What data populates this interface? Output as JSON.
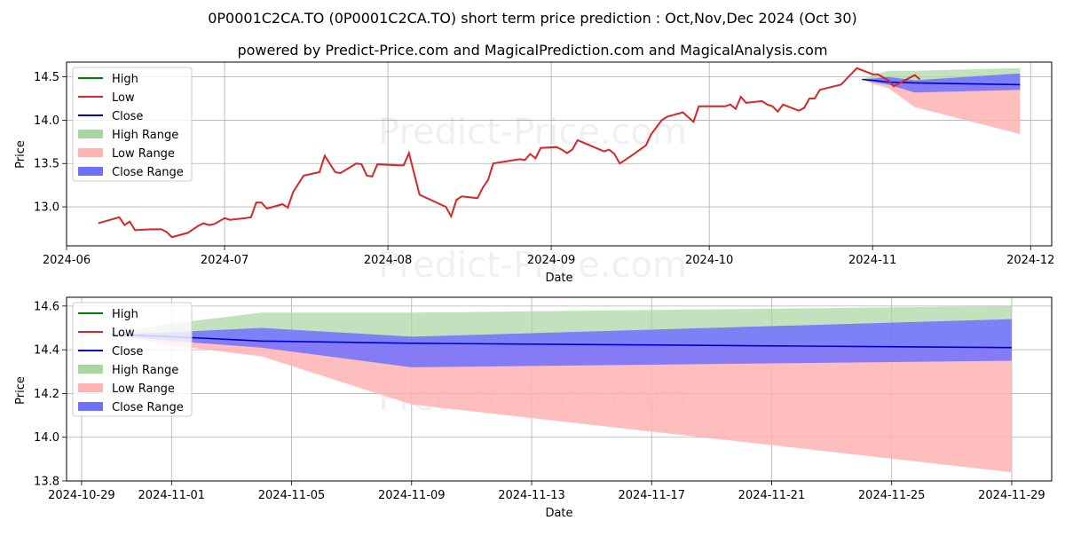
{
  "title": "0P0001C2CA.TO (0P0001C2CA.TO) short term price prediction : Oct,Nov,Dec 2024 (Oct 30)",
  "subtitle": "powered by Predict-Price.com and MagicalPrediction.com and MagicalAnalysis.com",
  "watermark": "Predict-Price.com",
  "colors": {
    "high": "#008000",
    "low": "#d62728",
    "close": "#0000cc",
    "high_range": "#a8d5a2",
    "low_range": "#ffb3b3",
    "close_range": "#7070ff"
  },
  "legend": [
    "High",
    "Low",
    "Close",
    "High Range",
    "Low Range",
    "Close Range"
  ],
  "chart_data": [
    {
      "type": "line",
      "xlabel": "Date",
      "ylabel": "Price",
      "legend_position": "top-left",
      "grid": true,
      "xlim": [
        "2024-06-01",
        "2024-12-05"
      ],
      "ylim": [
        12.55,
        14.67
      ],
      "x_ticks": [
        "2024-06",
        "2024-07",
        "2024-08",
        "2024-09",
        "2024-10",
        "2024-11",
        "2024-12"
      ],
      "x_tick_dates": [
        "2024-06-01",
        "2024-07-01",
        "2024-08-01",
        "2024-09-01",
        "2024-10-01",
        "2024-11-01",
        "2024-12-01"
      ],
      "y_ticks": [
        "13.0",
        "13.5",
        "14.0",
        "14.5"
      ],
      "history": {
        "name": "Low",
        "points": [
          [
            "2024-06-07",
            12.81
          ],
          [
            "2024-06-11",
            12.88
          ],
          [
            "2024-06-12",
            12.79
          ],
          [
            "2024-06-13",
            12.83
          ],
          [
            "2024-06-14",
            12.73
          ],
          [
            "2024-06-17",
            12.74
          ],
          [
            "2024-06-19",
            12.74
          ],
          [
            "2024-06-20",
            12.71
          ],
          [
            "2024-06-21",
            12.65
          ],
          [
            "2024-06-24",
            12.7
          ],
          [
            "2024-06-26",
            12.78
          ],
          [
            "2024-06-27",
            12.81
          ],
          [
            "2024-06-28",
            12.79
          ],
          [
            "2024-06-29",
            12.8
          ],
          [
            "2024-07-01",
            12.87
          ],
          [
            "2024-07-02",
            12.85
          ],
          [
            "2024-07-05",
            12.87
          ],
          [
            "2024-07-06",
            12.88
          ],
          [
            "2024-07-07",
            13.05
          ],
          [
            "2024-07-08",
            13.05
          ],
          [
            "2024-07-09",
            12.98
          ],
          [
            "2024-07-12",
            13.03
          ],
          [
            "2024-07-13",
            12.99
          ],
          [
            "2024-07-14",
            13.17
          ],
          [
            "2024-07-16",
            13.36
          ],
          [
            "2024-07-19",
            13.4
          ],
          [
            "2024-07-20",
            13.59
          ],
          [
            "2024-07-22",
            13.4
          ],
          [
            "2024-07-23",
            13.39
          ],
          [
            "2024-07-26",
            13.5
          ],
          [
            "2024-07-27",
            13.49
          ],
          [
            "2024-07-28",
            13.36
          ],
          [
            "2024-07-29",
            13.35
          ],
          [
            "2024-07-30",
            13.49
          ],
          [
            "2024-08-03",
            13.48
          ],
          [
            "2024-08-04",
            13.48
          ],
          [
            "2024-08-05",
            13.62
          ],
          [
            "2024-08-07",
            13.14
          ],
          [
            "2024-08-12",
            13.0
          ],
          [
            "2024-08-13",
            12.89
          ],
          [
            "2024-08-14",
            13.08
          ],
          [
            "2024-08-15",
            13.12
          ],
          [
            "2024-08-18",
            13.1
          ],
          [
            "2024-08-19",
            13.22
          ],
          [
            "2024-08-20",
            13.31
          ],
          [
            "2024-08-21",
            13.5
          ],
          [
            "2024-08-26",
            13.55
          ],
          [
            "2024-08-27",
            13.54
          ],
          [
            "2024-08-28",
            13.61
          ],
          [
            "2024-08-29",
            13.56
          ],
          [
            "2024-08-30",
            13.68
          ],
          [
            "2024-09-02",
            13.69
          ],
          [
            "2024-09-03",
            13.66
          ],
          [
            "2024-09-04",
            13.62
          ],
          [
            "2024-09-05",
            13.66
          ],
          [
            "2024-09-06",
            13.77
          ],
          [
            "2024-09-11",
            13.64
          ],
          [
            "2024-09-12",
            13.66
          ],
          [
            "2024-09-13",
            13.61
          ],
          [
            "2024-09-14",
            13.5
          ],
          [
            "2024-09-16",
            13.58
          ],
          [
            "2024-09-19",
            13.71
          ],
          [
            "2024-09-20",
            13.84
          ],
          [
            "2024-09-22",
            14.0
          ],
          [
            "2024-09-23",
            14.04
          ],
          [
            "2024-09-26",
            14.09
          ],
          [
            "2024-09-28",
            13.98
          ],
          [
            "2024-09-29",
            14.16
          ],
          [
            "2024-10-04",
            14.16
          ],
          [
            "2024-10-05",
            14.18
          ],
          [
            "2024-10-06",
            14.13
          ],
          [
            "2024-10-07",
            14.27
          ],
          [
            "2024-10-08",
            14.2
          ],
          [
            "2024-10-11",
            14.22
          ],
          [
            "2024-10-12",
            14.18
          ],
          [
            "2024-10-13",
            14.16
          ],
          [
            "2024-10-14",
            14.1
          ],
          [
            "2024-10-15",
            14.18
          ],
          [
            "2024-10-18",
            14.11
          ],
          [
            "2024-10-19",
            14.14
          ],
          [
            "2024-10-20",
            14.25
          ],
          [
            "2024-10-21",
            14.25
          ],
          [
            "2024-10-22",
            14.35
          ],
          [
            "2024-10-26",
            14.41
          ],
          [
            "2024-10-29",
            14.6
          ],
          [
            "2024-11-01",
            14.53
          ],
          [
            "2024-11-02",
            14.53
          ],
          [
            "2024-11-04",
            14.46
          ],
          [
            "2024-11-05",
            14.39
          ],
          [
            "2024-11-09",
            14.52
          ],
          [
            "2024-11-10",
            14.47
          ]
        ]
      }
    },
    {
      "type": "area",
      "xlabel": "Date",
      "ylabel": "Price",
      "legend_position": "top-left",
      "grid": true,
      "xlim": [
        "2024-10-28 12:00",
        "2024-11-30 08:00"
      ],
      "ylim": [
        13.8,
        14.64
      ],
      "x_ticks": [
        "2024-10-29",
        "2024-11-01",
        "2024-11-05",
        "2024-11-09",
        "2024-11-13",
        "2024-11-17",
        "2024-11-21",
        "2024-11-25",
        "2024-11-29"
      ],
      "y_ticks": [
        "13.8",
        "14.0",
        "14.2",
        "14.4",
        "14.6"
      ],
      "forecast": [
        {
          "date": "2024-10-30",
          "high": 14.47,
          "low": 14.47,
          "close": 14.47,
          "close_hi": 14.47,
          "close_lo": 14.47
        },
        {
          "date": "2024-11-01",
          "high": 14.52,
          "low": 14.42,
          "close": 14.46,
          "close_hi": 14.48,
          "close_lo": 14.44
        },
        {
          "date": "2024-11-04",
          "high": 14.57,
          "low": 14.37,
          "close": 14.44,
          "close_hi": 14.5,
          "close_lo": 14.41
        },
        {
          "date": "2024-11-09",
          "high": 14.57,
          "low": 14.15,
          "close": 14.43,
          "close_hi": 14.46,
          "close_lo": 14.32
        },
        {
          "date": "2024-11-29",
          "high": 14.6,
          "low": 13.84,
          "close": 14.41,
          "close_hi": 14.54,
          "close_lo": 14.35
        }
      ]
    }
  ]
}
